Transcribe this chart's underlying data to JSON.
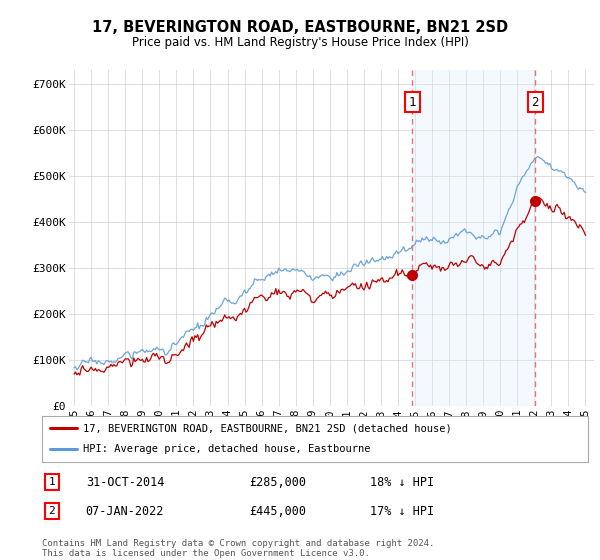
{
  "title": "17, BEVERINGTON ROAD, EASTBOURNE, BN21 2SD",
  "subtitle": "Price paid vs. HM Land Registry's House Price Index (HPI)",
  "ylabel_ticks": [
    "£0",
    "£100K",
    "£200K",
    "£300K",
    "£400K",
    "£500K",
    "£600K",
    "£700K"
  ],
  "ytick_values": [
    0,
    100000,
    200000,
    300000,
    400000,
    500000,
    600000,
    700000
  ],
  "ylim": [
    0,
    730000
  ],
  "hpi_color": "#5b9bd5",
  "price_color": "#c00000",
  "dashed_color": "#e06060",
  "bg_color": "#ffffff",
  "shade_color": "#ddeeff",
  "grid_color": "#cccccc",
  "legend_label_price": "17, BEVERINGTON ROAD, EASTBOURNE, BN21 2SD (detached house)",
  "legend_label_hpi": "HPI: Average price, detached house, Eastbourne",
  "footer": "Contains HM Land Registry data © Crown copyright and database right 2024.\nThis data is licensed under the Open Government Licence v3.0.",
  "note1_label": "1",
  "note1_date": "31-OCT-2014",
  "note1_price": "£285,000",
  "note1_pct": "18% ↓ HPI",
  "note2_label": "2",
  "note2_date": "07-JAN-2022",
  "note2_price": "£445,000",
  "note2_pct": "17% ↓ HPI",
  "t1_year": 2014.83,
  "t1_price": 285000,
  "t2_year": 2022.04,
  "t2_price": 445000,
  "xstart": 1995,
  "xend": 2025
}
